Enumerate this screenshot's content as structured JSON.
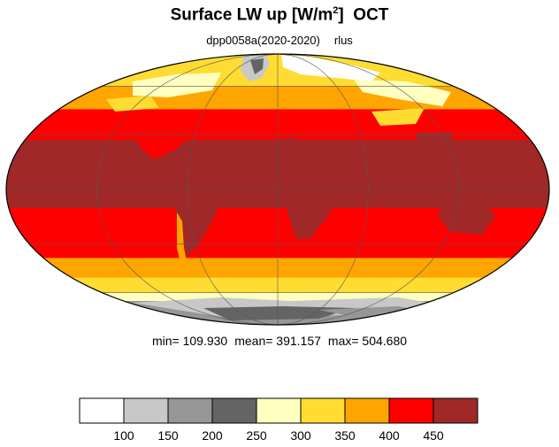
{
  "title": {
    "main": "Surface LW up [W/m",
    "sup": "2",
    "close": "]",
    "month": "OCT"
  },
  "subtitle": {
    "experiment": "dpp0058a(2020-2020)",
    "variable": "rlus"
  },
  "stats": {
    "min": "min= 109.930",
    "mean": "mean= 391.157",
    "max": "max= 504.680"
  },
  "colorbar": {
    "colors": [
      "#ffffff",
      "#c8c8c8",
      "#969696",
      "#646464",
      "#ffffc0",
      "#ffdc32",
      "#ffa500",
      "#ff0000",
      "#a02828"
    ],
    "labels": [
      "100",
      "150",
      "200",
      "250",
      "300",
      "350",
      "400",
      "450"
    ]
  },
  "map": {
    "projection": "Mollweide",
    "bands": [
      {
        "lat_from": 90,
        "lat_to": 78,
        "color": "#ffdc32"
      },
      {
        "lat_from": 78,
        "lat_to": 60,
        "color": "#ffdc32"
      },
      {
        "lat_from": 60,
        "lat_to": 45,
        "color": "#ffa500"
      },
      {
        "lat_from": 45,
        "lat_to": 27,
        "color": "#ff0000"
      },
      {
        "lat_from": 27,
        "lat_to": -10,
        "color": "#a02828"
      },
      {
        "lat_from": -10,
        "lat_to": -38,
        "color": "#ff0000"
      },
      {
        "lat_from": -38,
        "lat_to": -50,
        "color": "#ffa500"
      },
      {
        "lat_from": -50,
        "lat_to": -60,
        "color": "#ffdc32"
      },
      {
        "lat_from": -60,
        "lat_to": -66,
        "color": "#ffffc0"
      },
      {
        "lat_from": -66,
        "lat_to": -90,
        "color": "#969696"
      }
    ]
  }
}
